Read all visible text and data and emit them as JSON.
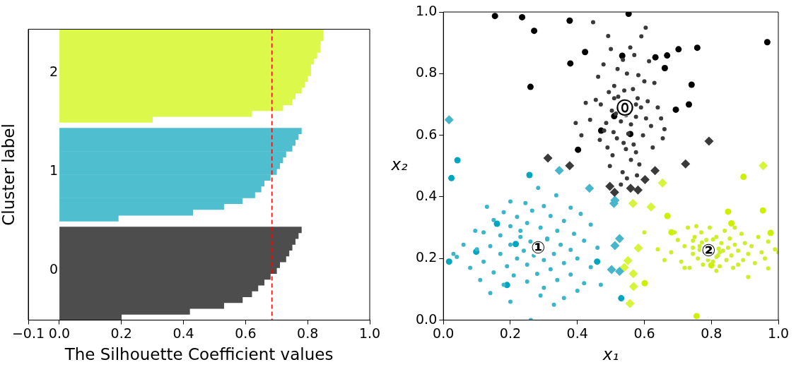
{
  "chart_data": [
    {
      "type": "bar",
      "orientation": "horizontal",
      "xlabel": "The Silhouette Coefficient values",
      "ylabel": "Cluster label",
      "categories": [
        null,
        null,
        null,
        null,
        null,
        null,
        null,
        "2",
        null,
        null,
        null,
        null,
        null,
        null,
        null,
        null,
        null,
        null,
        null,
        null,
        null,
        null,
        null,
        null,
        "1",
        null,
        null,
        null,
        null,
        null,
        null,
        null,
        null,
        null,
        null,
        null,
        null,
        null,
        null,
        null,
        null,
        "0",
        null,
        null,
        null,
        null,
        null,
        null,
        null,
        null
      ],
      "values": [
        0.85,
        0.85,
        0.84,
        0.84,
        0.83,
        0.82,
        0.81,
        0.81,
        0.8,
        0.79,
        0.78,
        0.76,
        0.75,
        0.72,
        0.62,
        0.3,
        null,
        0.78,
        0.77,
        0.76,
        0.75,
        0.73,
        0.72,
        0.71,
        0.7,
        0.68,
        0.66,
        0.65,
        0.63,
        0.59,
        0.53,
        0.43,
        0.19,
        null,
        0.78,
        0.77,
        0.76,
        0.75,
        0.74,
        0.73,
        0.71,
        0.7,
        0.68,
        0.66,
        0.64,
        0.62,
        0.59,
        0.53,
        0.42,
        0.2
      ],
      "colors": [
        "#dcf84b",
        "#dcf84b",
        "#dcf84b",
        "#dcf84b",
        "#dcf84b",
        "#dcf84b",
        "#dcf84b",
        "#dcf84b",
        "#dcf84b",
        "#dcf84b",
        "#dcf84b",
        "#dcf84b",
        "#dcf84b",
        "#dcf84b",
        "#dcf84b",
        "#dcf84b",
        "#ffffff",
        "#4fbfcf",
        "#4fbfcf",
        "#4fbfcf",
        "#4fbfcf",
        "#4fbfcf",
        "#4fbfcf",
        "#4fbfcf",
        "#4fbfcf",
        "#4fbfcf",
        "#4fbfcf",
        "#4fbfcf",
        "#4fbfcf",
        "#4fbfcf",
        "#4fbfcf",
        "#4fbfcf",
        "#4fbfcf",
        "#ffffff",
        "#4d4d4d",
        "#4d4d4d",
        "#4d4d4d",
        "#4d4d4d",
        "#4d4d4d",
        "#4d4d4d",
        "#4d4d4d",
        "#4d4d4d",
        "#4d4d4d",
        "#4d4d4d",
        "#4d4d4d",
        "#4d4d4d",
        "#4d4d4d",
        "#4d4d4d",
        "#4d4d4d",
        "#4d4d4d"
      ],
      "xlim": [
        -0.1,
        1.0
      ],
      "xticks": [
        {
          "value": -0.1,
          "label": "−0.1"
        },
        {
          "value": 0,
          "label": "0.0"
        },
        0.2,
        0.4,
        0.6,
        0.8,
        {
          "value": 1,
          "label": "1.0"
        }
      ],
      "ref_lines": [
        {
          "axis": "x",
          "value": 0.685,
          "color": "#ff0000",
          "line_style": "dashed"
        }
      ]
    },
    {
      "type": "scatter",
      "xlabel": "x₁",
      "ylabel": "x₂",
      "xlim": [
        0,
        1
      ],
      "ylim": [
        0,
        1
      ],
      "xticks": [
        {
          "value": 0,
          "label": "0.0"
        },
        0.2,
        0.4,
        0.6,
        0.8,
        {
          "value": 1,
          "label": "1.0"
        }
      ],
      "yticks": [
        {
          "value": 0,
          "label": "0.0"
        },
        0.2,
        0.4,
        0.6,
        0.8,
        {
          "value": 1,
          "label": "1.0"
        }
      ],
      "series": [
        {
          "color": "#3a3a3a",
          "marker": "circle",
          "x": [
            0.447,
            0.604,
            0.492,
            0.591,
            0.5,
            0.558,
            0.57,
            0.536,
            0.614,
            0.478,
            0.52,
            0.548,
            0.582,
            0.462,
            0.6,
            0.63,
            0.51,
            0.54,
            0.566,
            0.494,
            0.522,
            0.58,
            0.61,
            0.455,
            0.47,
            0.51,
            0.575,
            0.59,
            0.64,
            0.503,
            0.515,
            0.545,
            0.575,
            0.605,
            0.425,
            0.438,
            0.486,
            0.53,
            0.56,
            0.62,
            0.65,
            0.66,
            0.48,
            0.508,
            0.552,
            0.596,
            0.518,
            0.538,
            0.568,
            0.49,
            0.545,
            0.575,
            0.505,
            0.56,
            0.585,
            0.467,
            0.625,
            0.395,
            0.412,
            0.655,
            0.535,
            0.548,
            0.53,
            0.497,
            0.578
          ],
          "values": [
            0.967,
            0.949,
            0.922,
            0.921,
            0.88,
            0.885,
            0.86,
            0.845,
            0.84,
            0.83,
            0.815,
            0.8,
            0.795,
            0.79,
            0.775,
            0.77,
            0.76,
            0.745,
            0.75,
            0.74,
            0.725,
            0.72,
            0.71,
            0.715,
            0.7,
            0.72,
            0.7,
            0.69,
            0.69,
            0.68,
            0.67,
            0.665,
            0.66,
            0.655,
            0.705,
            0.65,
            0.64,
            0.645,
            0.635,
            0.63,
            0.655,
            0.62,
            0.615,
            0.61,
            0.605,
            0.6,
            0.59,
            0.575,
            0.57,
            0.56,
            0.555,
            0.545,
            0.535,
            0.52,
            0.505,
            0.585,
            0.56,
            0.64,
            0.6,
            0.59,
            0.48,
            0.46,
            0.44,
            0.5,
            0.47
          ]
        },
        {
          "color": "#3bb5c9",
          "marker": "circle",
          "x": [
            0.283,
            0.337,
            0.2,
            0.245,
            0.3,
            0.13,
            0.38,
            0.41,
            0.18,
            0.265,
            0.22,
            0.32,
            0.15,
            0.36,
            0.095,
            0.25,
            0.44,
            0.2,
            0.29,
            0.12,
            0.34,
            0.39,
            0.17,
            0.23,
            0.31,
            0.06,
            0.26,
            0.42,
            0.14,
            0.2,
            0.35,
            0.31,
            0.24,
            0.1,
            0.38,
            0.46,
            0.17,
            0.33,
            0.27,
            0.04,
            0.22,
            0.4,
            0.3,
            0.12,
            0.36,
            0.19,
            0.25,
            0.44,
            0.08,
            0.32,
            0.15,
            0.28,
            0.21,
            0.38,
            0.34,
            0.11,
            0.25,
            0.42,
            0.18,
            0.3,
            0.4,
            0.14,
            0.29,
            0.36,
            0.2,
            0.33,
            0.261,
            0.47,
            0.03,
            0.23
          ],
          "values": [
            0.429,
            0.405,
            0.385,
            0.38,
            0.37,
            0.368,
            0.365,
            0.345,
            0.35,
            0.355,
            0.335,
            0.338,
            0.325,
            0.322,
            0.29,
            0.315,
            0.31,
            0.305,
            0.3,
            0.285,
            0.29,
            0.28,
            0.275,
            0.27,
            0.265,
            0.245,
            0.255,
            0.258,
            0.24,
            0.245,
            0.245,
            0.262,
            0.225,
            0.23,
            0.228,
            0.235,
            0.215,
            0.215,
            0.21,
            0.205,
            0.2,
            0.2,
            0.195,
            0.19,
            0.185,
            0.175,
            0.18,
            0.172,
            0.17,
            0.165,
            0.155,
            0.15,
            0.145,
            0.148,
            0.13,
            0.13,
            0.125,
            0.12,
            0.115,
            0.105,
            0.095,
            0.088,
            0.08,
            0.072,
            0.06,
            0.05,
            0.0,
            0.115,
            0.215,
            0.29
          ]
        },
        {
          "color": "#cdee2a",
          "marker": "circle",
          "x": [
            0.6,
            0.64,
            0.66,
            0.68,
            0.7,
            0.71,
            0.72,
            0.73,
            0.735,
            0.745,
            0.75,
            0.76,
            0.765,
            0.77,
            0.775,
            0.772,
            0.785,
            0.79,
            0.795,
            0.805,
            0.805,
            0.822,
            0.815,
            0.82,
            0.825,
            0.83,
            0.835,
            0.84,
            0.845,
            0.85,
            0.855,
            0.86,
            0.865,
            0.87,
            0.88,
            0.89,
            0.895,
            0.9,
            0.91,
            0.92,
            0.93,
            0.94,
            0.95,
            0.96,
            0.97,
            0.99,
            1.0,
            0.97,
            0.72,
            0.91,
            0.69,
            0.755,
            0.87,
            0.815,
            0.745,
            0.88,
            0.815,
            0.765,
            0.825,
            0.745
          ],
          "values": [
            0.285,
            0.23,
            0.195,
            0.22,
            0.26,
            0.19,
            0.24,
            0.3,
            0.17,
            0.215,
            0.27,
            0.2,
            0.24,
            0.285,
            0.18,
            0.252,
            0.26,
            0.195,
            0.3,
            0.262,
            0.19,
            0.232,
            0.27,
            0.21,
            0.175,
            0.25,
            0.225,
            0.29,
            0.195,
            0.235,
            0.265,
            0.21,
            0.17,
            0.245,
            0.225,
            0.28,
            0.195,
            0.25,
            0.215,
            0.24,
            0.185,
            0.27,
            0.22,
            0.2,
            0.255,
            0.23,
            0.22,
            0.168,
            0.17,
            0.14,
            0.285,
            0.305,
            0.3,
            0.16,
            0.258,
            0.18,
            0.205,
            0.228,
            0.22,
            0.235
          ]
        },
        {
          "color": "#000000",
          "marker": "circle",
          "x": [
            0.154,
            0.235,
            0.271,
            0.377,
            0.553,
            0.967,
            0.423,
            0.534,
            0.633,
            0.668,
            0.702,
            0.758,
            0.379,
            0.661,
            0.26,
            0.741,
            0.733,
            0.694,
            0.51,
            0.471,
            0.558,
            0.402
          ],
          "values": [
            0.987,
            0.983,
            0.939,
            0.972,
            0.994,
            0.902,
            0.87,
            0.858,
            0.853,
            0.859,
            0.879,
            0.884,
            0.833,
            0.818,
            0.757,
            0.764,
            0.7,
            0.683,
            0.662,
            0.615,
            0.604,
            0.553
          ]
        },
        {
          "color": "#00a5c0",
          "marker": "circle",
          "x": [
            0.042,
            0.024,
            0.257,
            0.16,
            0.216,
            0.098,
            0.017,
            0.19,
            0.459,
            0.531
          ],
          "values": [
            0.519,
            0.461,
            0.471,
            0.313,
            0.247,
            0.222,
            0.19,
            0.114,
            0.19,
            0.071
          ]
        },
        {
          "color": "#ccf000",
          "marker": "circle",
          "x": [
            0.896,
            0.85,
            0.954,
            0.669,
            0.86,
            0.681,
            0.977,
            0.8,
            0.601,
            0.756
          ],
          "values": [
            0.465,
            0.352,
            0.356,
            0.338,
            0.314,
            0.285,
            0.283,
            0.178,
            0.12,
            0.013
          ]
        },
        {
          "color": "#3a3a3a",
          "marker": "diamond",
          "x": [
            0.312,
            0.377,
            0.793,
            0.723,
            0.632,
            0.602,
            0.497,
            0.511,
            0.559,
            0.581
          ],
          "values": [
            0.526,
            0.501,
            0.581,
            0.507,
            0.485,
            0.456,
            0.434,
            0.415,
            0.428,
            0.422
          ]
        },
        {
          "color": "#48b6ca",
          "marker": "diamond",
          "x": [
            0.017,
            0.346,
            0.436,
            0.512,
            0.509,
            0.526,
            0.512,
            0.502,
            0.526
          ],
          "values": [
            0.65,
            0.486,
            0.428,
            0.389,
            0.379,
            0.265,
            0.242,
            0.164,
            0.158
          ]
        },
        {
          "color": "#d6f53a",
          "marker": "diamond",
          "x": [
            0.955,
            0.654,
            0.566,
            0.62,
            0.582,
            0.551,
            0.54,
            0.567,
            0.568,
            0.557
          ],
          "values": [
            0.501,
            0.445,
            0.379,
            0.367,
            0.234,
            0.193,
            0.171,
            0.151,
            0.109,
            0.054
          ]
        }
      ],
      "annotations": [
        {
          "text": "⓪",
          "x": 0.541,
          "y": 0.686
        },
        {
          "text": "①",
          "x": 0.283,
          "y": 0.234
        },
        {
          "text": "②",
          "x": 0.792,
          "y": 0.224
        }
      ]
    }
  ]
}
